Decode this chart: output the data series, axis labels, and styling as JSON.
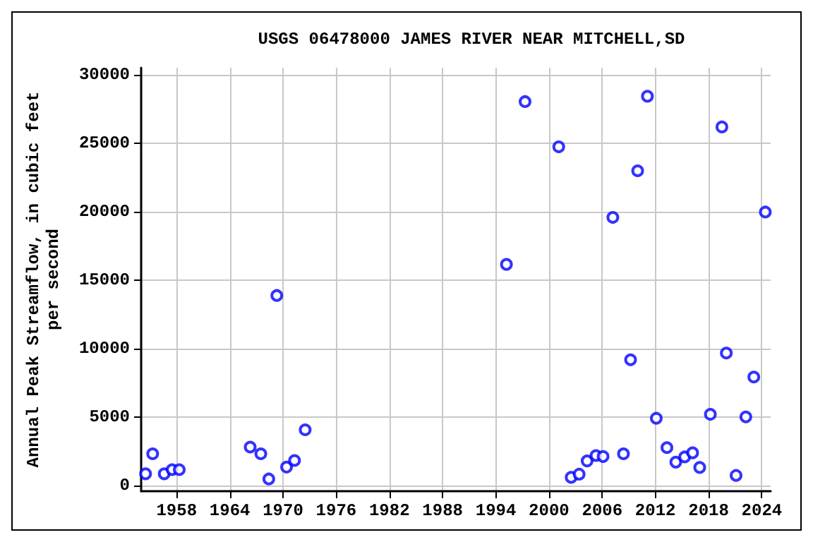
{
  "chart_data": {
    "type": "scatter",
    "title": "USGS 06478000 JAMES RIVER NEAR MITCHELL,SD",
    "ylabel": "Annual Peak Streamflow, in cubic feet\nper second",
    "x": [
      1954.5,
      1955.3,
      1956.6,
      1957.5,
      1958.3,
      1966.3,
      1967.5,
      1968.4,
      1969.3,
      1970.4,
      1971.3,
      1972.5,
      1995.2,
      1997.3,
      2001.1,
      2002.5,
      2003.4,
      2004.3,
      2005.3,
      2006.1,
      2007.2,
      2008.4,
      2009.2,
      2010.0,
      2011.1,
      2012.1,
      2013.3,
      2014.3,
      2015.3,
      2016.2,
      2017.0,
      2018.2,
      2019.5,
      2020.0,
      2021.1,
      2022.2,
      2023.1,
      2024.4
    ],
    "values": [
      870,
      2330,
      870,
      1170,
      1170,
      2820,
      2330,
      490,
      13880,
      1360,
      1840,
      4080,
      16150,
      28030,
      24730,
      610,
      840,
      1810,
      2200,
      2130,
      19580,
      2330,
      9190,
      22980,
      28420,
      4920,
      2780,
      1720,
      2100,
      2400,
      1330,
      5210,
      26180,
      9680,
      750,
      5020,
      7930,
      19970
    ],
    "color": "#0000ff",
    "marker": "circle",
    "grid": true,
    "xlim": [
      1954,
      2025
    ],
    "xticks": [
      1958,
      1964,
      1970,
      1976,
      1982,
      1988,
      1994,
      2000,
      2006,
      2012,
      2018,
      2024
    ],
    "ylim": [
      -400,
      30500
    ],
    "yticks": [
      0,
      5000,
      10000,
      15000,
      20000,
      25000,
      30000
    ]
  }
}
